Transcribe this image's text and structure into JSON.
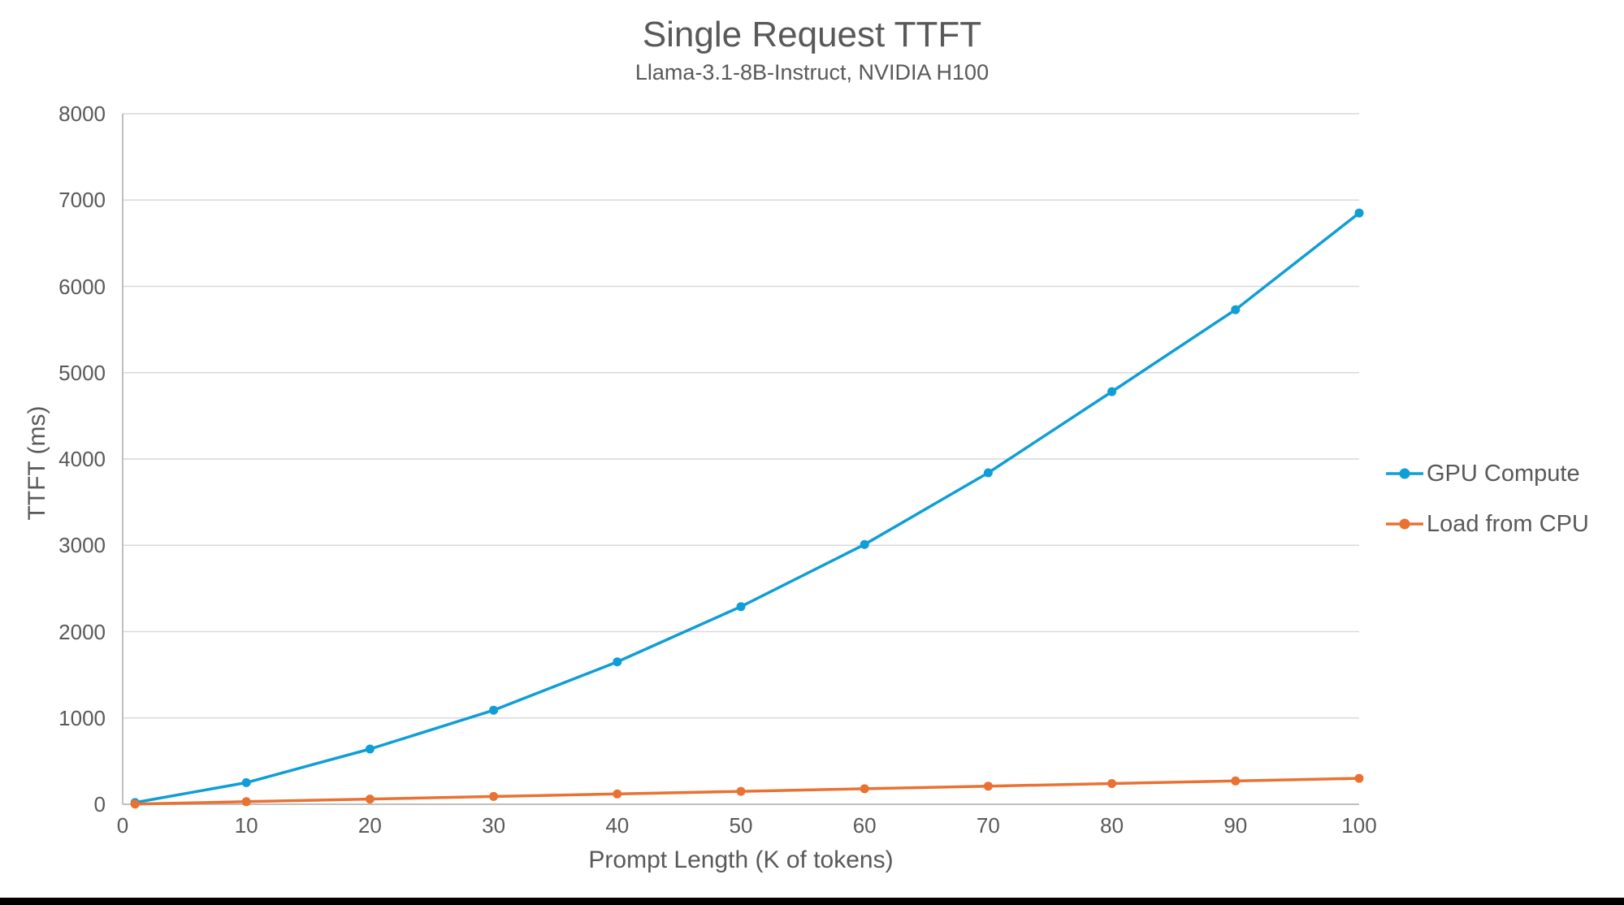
{
  "chart_data": {
    "type": "line",
    "title": "Single Request TTFT",
    "subtitle": "Llama-3.1-8B-Instruct, NVIDIA H100",
    "xlabel": "Prompt Length (K of tokens)",
    "ylabel": "TTFT (ms)",
    "xlim": [
      0,
      100
    ],
    "ylim": [
      0,
      8000
    ],
    "x_ticks": [
      0,
      10,
      20,
      30,
      40,
      50,
      60,
      70,
      80,
      90,
      100
    ],
    "y_ticks": [
      0,
      1000,
      2000,
      3000,
      4000,
      5000,
      6000,
      7000,
      8000
    ],
    "grid": true,
    "legend_position": "right",
    "x": [
      1,
      10,
      20,
      30,
      40,
      50,
      60,
      70,
      80,
      90,
      100
    ],
    "series": [
      {
        "name": "GPU Compute",
        "color": "#0F9ED5",
        "values": [
          20,
          250,
          640,
          1090,
          1650,
          2290,
          3010,
          3840,
          4780,
          5730,
          6850
        ]
      },
      {
        "name": "Load from CPU",
        "color": "#E97132",
        "values": [
          3,
          30,
          60,
          90,
          120,
          150,
          180,
          210,
          240,
          270,
          300
        ]
      }
    ]
  },
  "colors": {
    "text": "#595959",
    "gridline": "#D9D9D9",
    "axis": "#BFBFBF",
    "background": "#FFFFFF",
    "bottom_bar": "#000000"
  }
}
